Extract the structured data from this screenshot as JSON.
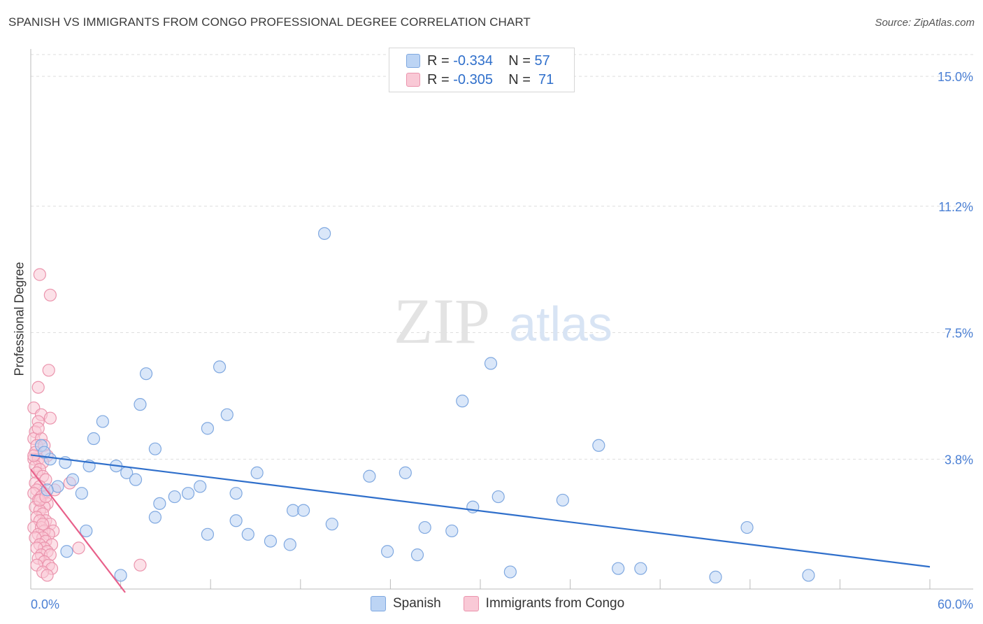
{
  "header": {
    "title": "SPANISH VS IMMIGRANTS FROM CONGO PROFESSIONAL DEGREE CORRELATION CHART",
    "source": "Source: ZipAtlas.com"
  },
  "legend": {
    "series1": {
      "r_label": "R =",
      "r_value": "-0.334",
      "n_label": "N =",
      "n_value": "57"
    },
    "series2": {
      "r_label": "R =",
      "r_value": "-0.305",
      "n_label": "N =",
      "n_value": "71"
    }
  },
  "watermark": {
    "zip": "ZIP",
    "atlas": "atlas"
  },
  "colors": {
    "blue_fill": "#bcd4f4",
    "blue_stroke": "#7fa8e0",
    "blue_line": "#2f6fcb",
    "pink_fill": "#f9c9d6",
    "pink_stroke": "#eb94ad",
    "pink_line": "#e8608a",
    "tick_text": "#4a7fd4"
  },
  "chart_data": {
    "type": "scatter",
    "title": "SPANISH VS IMMIGRANTS FROM CONGO PROFESSIONAL DEGREE CORRELATION CHART",
    "xlabel": "",
    "ylabel": "Professional Degree",
    "xlim": [
      0,
      60
    ],
    "ylim": [
      0,
      15.8
    ],
    "x_tick_labels": [
      "0.0%",
      "60.0%"
    ],
    "y_ticks": [
      3.8,
      7.5,
      11.2,
      15.0
    ],
    "y_tick_labels": [
      "3.8%",
      "7.5%",
      "11.2%",
      "15.0%"
    ],
    "grid": true,
    "legend_position": "top-center",
    "series": [
      {
        "name": "Spanish",
        "color": "#2f6fcb",
        "trend": {
          "x": [
            0,
            60
          ],
          "y": [
            3.92,
            0.65
          ]
        },
        "points": [
          [
            19.6,
            10.4
          ],
          [
            30.7,
            6.6
          ],
          [
            12.6,
            6.5
          ],
          [
            7.7,
            6.3
          ],
          [
            28.8,
            5.5
          ],
          [
            7.3,
            5.4
          ],
          [
            13.1,
            5.1
          ],
          [
            4.8,
            4.9
          ],
          [
            11.8,
            4.7
          ],
          [
            4.2,
            4.4
          ],
          [
            37.9,
            4.2
          ],
          [
            8.3,
            4.1
          ],
          [
            0.7,
            4.2
          ],
          [
            1.3,
            3.8
          ],
          [
            0.9,
            4.0
          ],
          [
            2.3,
            3.7
          ],
          [
            3.9,
            3.6
          ],
          [
            5.7,
            3.6
          ],
          [
            6.4,
            3.4
          ],
          [
            15.1,
            3.4
          ],
          [
            22.6,
            3.3
          ],
          [
            25.0,
            3.4
          ],
          [
            2.8,
            3.2
          ],
          [
            1.8,
            3.0
          ],
          [
            7.0,
            3.2
          ],
          [
            11.3,
            3.0
          ],
          [
            10.5,
            2.8
          ],
          [
            9.6,
            2.7
          ],
          [
            13.7,
            2.8
          ],
          [
            1.1,
            2.9
          ],
          [
            3.4,
            2.8
          ],
          [
            31.2,
            2.7
          ],
          [
            35.5,
            2.6
          ],
          [
            8.6,
            2.5
          ],
          [
            29.5,
            2.4
          ],
          [
            17.5,
            2.3
          ],
          [
            18.2,
            2.3
          ],
          [
            8.3,
            2.1
          ],
          [
            13.7,
            2.0
          ],
          [
            20.1,
            1.9
          ],
          [
            47.8,
            1.8
          ],
          [
            3.7,
            1.7
          ],
          [
            26.3,
            1.8
          ],
          [
            11.8,
            1.6
          ],
          [
            14.5,
            1.6
          ],
          [
            28.1,
            1.7
          ],
          [
            16.0,
            1.4
          ],
          [
            17.3,
            1.3
          ],
          [
            23.8,
            1.1
          ],
          [
            25.8,
            1.0
          ],
          [
            2.4,
            1.1
          ],
          [
            32.0,
            0.5
          ],
          [
            39.2,
            0.6
          ],
          [
            40.7,
            0.6
          ],
          [
            51.9,
            0.4
          ],
          [
            45.7,
            0.35
          ],
          [
            6.0,
            0.4
          ]
        ]
      },
      {
        "name": "Immigrants from Congo",
        "color": "#e8608a",
        "trend": {
          "x": [
            0,
            6.3
          ],
          "y": [
            3.5,
            -0.1
          ]
        },
        "points": [
          [
            0.6,
            9.2
          ],
          [
            1.3,
            8.6
          ],
          [
            1.2,
            6.4
          ],
          [
            0.5,
            5.9
          ],
          [
            0.2,
            5.3
          ],
          [
            0.7,
            5.1
          ],
          [
            1.3,
            5.0
          ],
          [
            0.5,
            4.9
          ],
          [
            0.3,
            4.6
          ],
          [
            0.2,
            4.4
          ],
          [
            0.7,
            4.4
          ],
          [
            0.4,
            4.2
          ],
          [
            0.9,
            4.2
          ],
          [
            0.3,
            4.0
          ],
          [
            1.1,
            3.9
          ],
          [
            0.2,
            3.8
          ],
          [
            0.5,
            3.8
          ],
          [
            0.8,
            3.7
          ],
          [
            0.3,
            3.6
          ],
          [
            0.6,
            3.5
          ],
          [
            0.4,
            3.4
          ],
          [
            0.8,
            3.3
          ],
          [
            1.0,
            3.2
          ],
          [
            0.3,
            3.1
          ],
          [
            2.6,
            3.1
          ],
          [
            0.6,
            3.0
          ],
          [
            0.4,
            2.9
          ],
          [
            0.9,
            2.8
          ],
          [
            0.2,
            2.8
          ],
          [
            0.7,
            2.7
          ],
          [
            0.5,
            2.6
          ],
          [
            1.1,
            2.5
          ],
          [
            0.9,
            2.4
          ],
          [
            0.3,
            2.4
          ],
          [
            0.6,
            2.3
          ],
          [
            0.8,
            2.2
          ],
          [
            0.4,
            2.1
          ],
          [
            1.0,
            2.0
          ],
          [
            0.6,
            2.0
          ],
          [
            1.3,
            1.9
          ],
          [
            0.2,
            1.8
          ],
          [
            0.7,
            1.8
          ],
          [
            1.5,
            1.7
          ],
          [
            0.9,
            1.7
          ],
          [
            0.5,
            1.6
          ],
          [
            1.2,
            1.6
          ],
          [
            0.8,
            1.5
          ],
          [
            0.3,
            1.5
          ],
          [
            1.0,
            1.4
          ],
          [
            0.6,
            1.3
          ],
          [
            1.4,
            1.3
          ],
          [
            0.9,
            1.2
          ],
          [
            0.4,
            1.2
          ],
          [
            3.2,
            1.2
          ],
          [
            1.1,
            1.1
          ],
          [
            0.7,
            1.0
          ],
          [
            1.3,
            1.0
          ],
          [
            0.5,
            0.9
          ],
          [
            0.9,
            0.8
          ],
          [
            1.2,
            0.7
          ],
          [
            0.4,
            0.7
          ],
          [
            7.3,
            0.7
          ],
          [
            1.4,
            0.6
          ],
          [
            0.8,
            0.5
          ],
          [
            1.1,
            0.4
          ],
          [
            0.6,
            2.6
          ],
          [
            0.2,
            3.9
          ],
          [
            1.6,
            2.9
          ],
          [
            0.5,
            4.7
          ],
          [
            0.8,
            1.9
          ],
          [
            1.0,
            2.7
          ]
        ]
      }
    ]
  }
}
